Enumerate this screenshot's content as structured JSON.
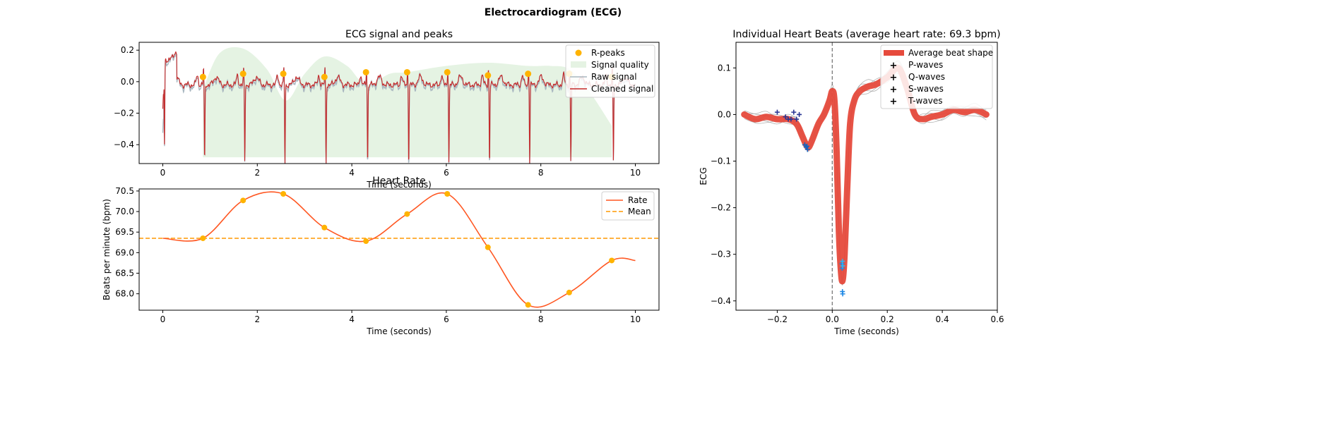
{
  "figure_title": "Electrocardiogram (ECG)",
  "colors": {
    "r_peaks": "#FFB300",
    "quality_fill": "#E5F3E3",
    "raw_signal": "#A9B7C0",
    "cleaned_signal": "#C62828",
    "rate_line": "#FF5722",
    "mean_line": "#FF9800",
    "avg_beat": "#E64A3C",
    "indiv_beats": "#9E9E9E",
    "p_waves": "#283593",
    "q_waves": "#1565C0",
    "s_waves": "#1E88E5",
    "t_waves": "#29B6F6",
    "vline": "#7a7a7a"
  },
  "chart_data": [
    {
      "type": "line",
      "title": "ECG signal and peaks",
      "xlabel": "Time (seconds)",
      "ylabel": "",
      "xlim": [
        -0.5,
        10.5
      ],
      "ylim": [
        -0.52,
        0.25
      ],
      "xticks": [
        0,
        2,
        4,
        6,
        8,
        10
      ],
      "yticks": [
        -0.4,
        -0.2,
        0.0,
        0.2
      ],
      "ytick_labels": [
        "−0.4",
        "−0.2",
        "0.0",
        "0.2"
      ],
      "legend": {
        "position": "top-right",
        "entries": [
          "R-peaks",
          "Signal quality",
          "Raw signal",
          "Cleaned signal"
        ]
      },
      "r_peaks": {
        "x": [
          0.85,
          1.7,
          2.55,
          3.42,
          4.3,
          5.17,
          6.02,
          6.88,
          7.73,
          8.6,
          9.5
        ],
        "y": [
          0.03,
          0.05,
          0.05,
          0.03,
          0.06,
          0.06,
          0.06,
          0.04,
          0.05,
          0.05,
          0.03
        ]
      },
      "signal_quality": {
        "x": [
          0.85,
          1.2,
          1.7,
          2.2,
          2.6,
          3.0,
          3.42,
          3.9,
          4.3,
          4.8,
          5.17,
          6.0,
          6.88,
          7.73,
          8.2,
          8.6,
          9.0,
          9.5
        ],
        "y": [
          -0.05,
          0.18,
          0.21,
          0.08,
          -0.12,
          0.05,
          0.16,
          0.1,
          -0.02,
          0.05,
          0.06,
          0.1,
          0.12,
          0.1,
          0.1,
          0.08,
          -0.05,
          -0.28
        ]
      }
    },
    {
      "type": "line",
      "title": "Heart Rate",
      "xlabel": "Time (seconds)",
      "ylabel": "Beats per minute (bpm)",
      "xlim": [
        -0.5,
        10.5
      ],
      "ylim": [
        67.6,
        70.55
      ],
      "xticks": [
        0,
        2,
        4,
        6,
        8,
        10
      ],
      "yticks": [
        68.0,
        68.5,
        69.0,
        69.5,
        70.0,
        70.5
      ],
      "ytick_labels": [
        "68.0",
        "68.5",
        "69.0",
        "69.5",
        "70.0",
        "70.5"
      ],
      "legend": {
        "position": "top-right",
        "entries": [
          "Rate",
          "Mean"
        ]
      },
      "mean": 69.35,
      "points": {
        "x": [
          0.85,
          1.7,
          2.55,
          3.42,
          4.3,
          5.17,
          6.02,
          6.88,
          7.73,
          8.6,
          9.5
        ],
        "y": [
          69.35,
          70.27,
          70.43,
          69.61,
          69.28,
          69.94,
          70.43,
          69.13,
          67.73,
          68.03,
          68.81
        ]
      },
      "series": [
        {
          "name": "Rate",
          "x": [
            0.0,
            0.85,
            1.7,
            2.55,
            3.42,
            4.3,
            5.17,
            6.02,
            6.88,
            7.73,
            8.6,
            9.5,
            10.0
          ],
          "y": [
            69.35,
            69.35,
            70.27,
            70.43,
            69.61,
            69.28,
            69.94,
            70.43,
            69.13,
            67.73,
            68.03,
            68.81,
            68.81
          ]
        }
      ]
    },
    {
      "type": "line",
      "title": "Individual Heart Beats (average heart rate: 69.3 bpm)",
      "xlabel": "Time (seconds)",
      "ylabel": "ECG",
      "xlim": [
        -0.35,
        0.6
      ],
      "ylim": [
        -0.42,
        0.155
      ],
      "xticks": [
        -0.2,
        0.0,
        0.2,
        0.4,
        0.6
      ],
      "xtick_labels": [
        "−0.2",
        "0.0",
        "0.2",
        "0.4",
        "0.6"
      ],
      "yticks": [
        -0.4,
        -0.3,
        -0.2,
        -0.1,
        0.0,
        0.1
      ],
      "ytick_labels": [
        "−0.4",
        "−0.3",
        "−0.2",
        "−0.1",
        "0.0",
        "0.1"
      ],
      "legend": {
        "position": "top-right",
        "entries": [
          "Average beat shape",
          "P-waves",
          "Q-waves",
          "S-waves",
          "T-waves"
        ]
      },
      "vline_x": 0.0,
      "average_beat": {
        "x": [
          -0.32,
          -0.28,
          -0.24,
          -0.2,
          -0.16,
          -0.13,
          -0.11,
          -0.095,
          -0.085,
          -0.07,
          -0.05,
          -0.03,
          -0.01,
          0.0,
          0.008,
          0.016,
          0.024,
          0.032,
          0.038,
          0.045,
          0.055,
          0.065,
          0.08,
          0.1,
          0.13,
          0.16,
          0.2,
          0.24,
          0.27,
          0.3,
          0.33,
          0.36,
          0.4,
          0.44,
          0.48,
          0.52,
          0.56
        ],
        "y": [
          0.0,
          -0.01,
          -0.005,
          -0.01,
          -0.01,
          -0.02,
          -0.045,
          -0.065,
          -0.07,
          -0.05,
          -0.02,
          0.0,
          0.03,
          0.05,
          0.03,
          -0.08,
          -0.25,
          -0.34,
          -0.355,
          -0.3,
          -0.15,
          -0.02,
          0.03,
          0.05,
          0.06,
          0.065,
          0.08,
          0.1,
          0.06,
          0.0,
          -0.01,
          -0.005,
          0.0,
          0.01,
          0.005,
          0.01,
          0.0
        ]
      },
      "p_waves": {
        "x": [
          -0.2,
          -0.17,
          -0.16,
          -0.15,
          -0.14,
          -0.13,
          -0.12
        ],
        "y": [
          0.005,
          -0.005,
          -0.01,
          -0.01,
          0.005,
          -0.01,
          0.0
        ]
      },
      "q_waves": {
        "x": [
          -0.1,
          -0.095,
          -0.09,
          -0.092
        ],
        "y": [
          -0.065,
          -0.07,
          -0.075,
          -0.068
        ]
      },
      "s_waves": {
        "x": [
          0.035,
          0.036,
          0.037,
          0.038
        ],
        "y": [
          -0.32,
          -0.33,
          -0.38,
          -0.385
        ]
      },
      "t_waves": {
        "x": [
          0.037,
          0.038
        ],
        "y": [
          -0.315,
          -0.325
        ]
      }
    }
  ]
}
